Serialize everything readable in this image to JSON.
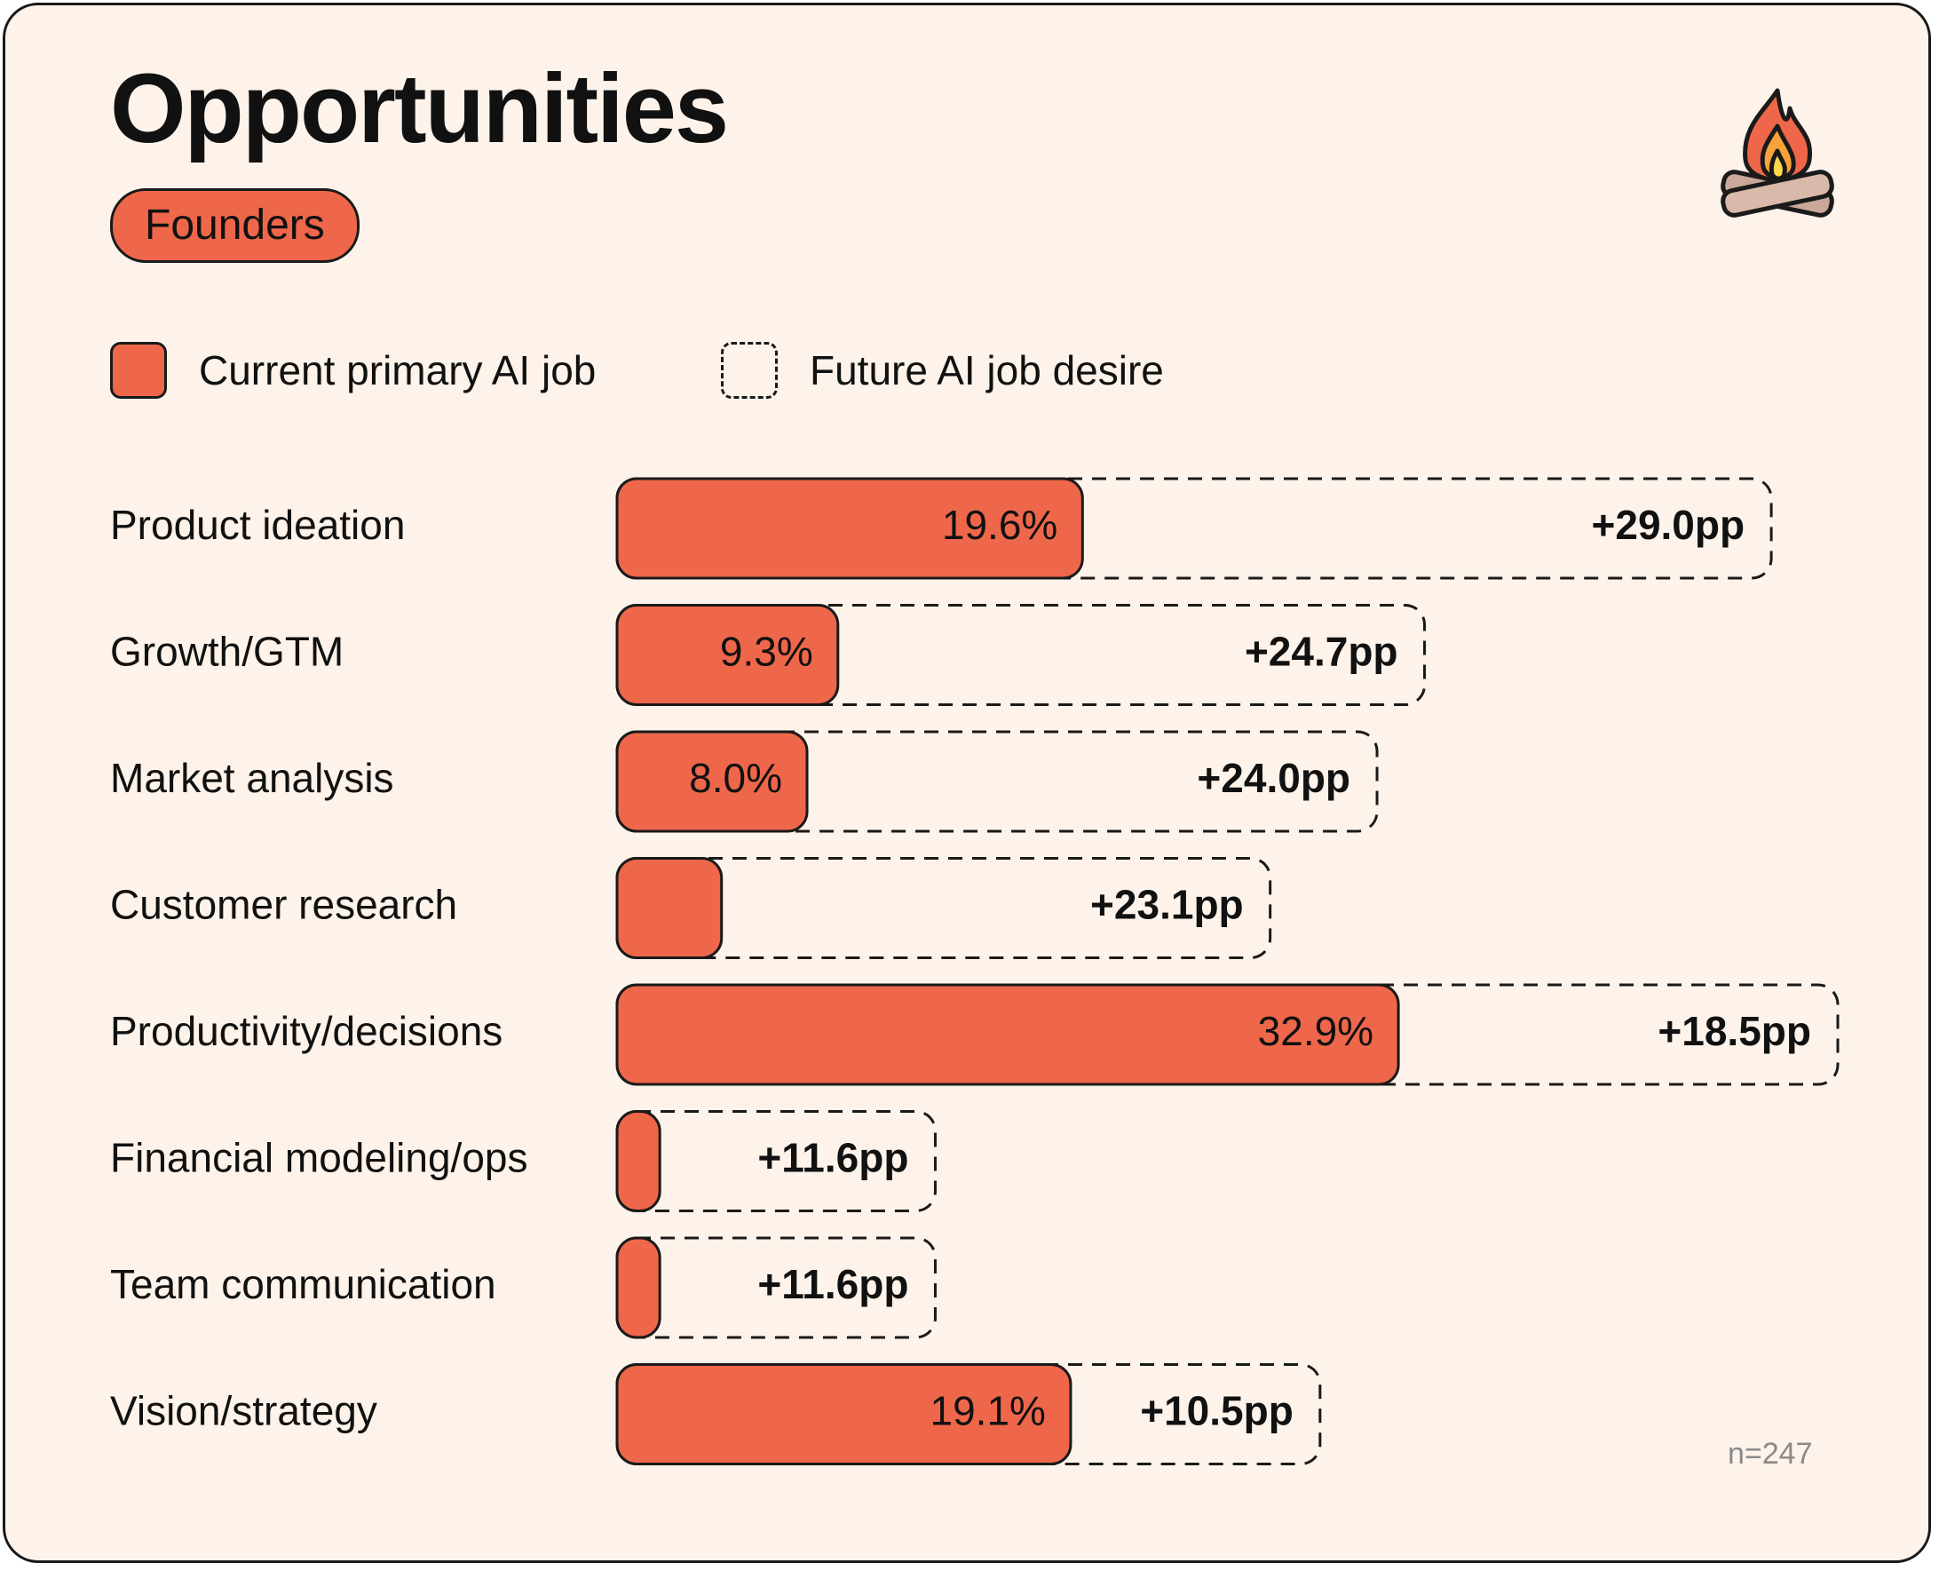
{
  "title": "Opportunities",
  "tag": "Founders",
  "legend": {
    "current": "Current primary AI job",
    "future": "Future AI job desire"
  },
  "note": "n=247",
  "colors": {
    "accent": "#ef674a",
    "background": "#fdf3ea",
    "outline": "#1a1a1a",
    "note": "#8a8a8a"
  },
  "icons": {
    "logo": "campfire-icon"
  },
  "chart_data": {
    "type": "bar",
    "orientation": "horizontal",
    "stacked": true,
    "categories": [
      "Product ideation",
      "Growth/GTM",
      "Market analysis",
      "Customer research",
      "Productivity/decisions",
      "Financial modeling/ops",
      "Team communication",
      "Vision/strategy"
    ],
    "series": [
      {
        "name": "Current primary AI job",
        "style": "solid",
        "values": [
          19.6,
          9.3,
          8.0,
          4.4,
          32.9,
          1.8,
          1.8,
          19.1
        ],
        "labels": [
          "19.6%",
          "9.3%",
          "8.0%",
          "",
          "32.9%",
          "",
          "",
          "19.1%"
        ]
      },
      {
        "name": "Future AI job desire",
        "style": "dashed",
        "values": [
          29.0,
          24.7,
          24.0,
          23.1,
          18.5,
          11.6,
          11.6,
          10.5
        ],
        "labels": [
          "+29.0pp",
          "+24.7pp",
          "+24.0pp",
          "+23.1pp",
          "+18.5pp",
          "+11.6pp",
          "+11.6pp",
          "+10.5pp"
        ]
      }
    ],
    "unit": "%",
    "xlim": [
      0,
      51.4
    ],
    "grid": false,
    "legend_position": "top-left"
  }
}
